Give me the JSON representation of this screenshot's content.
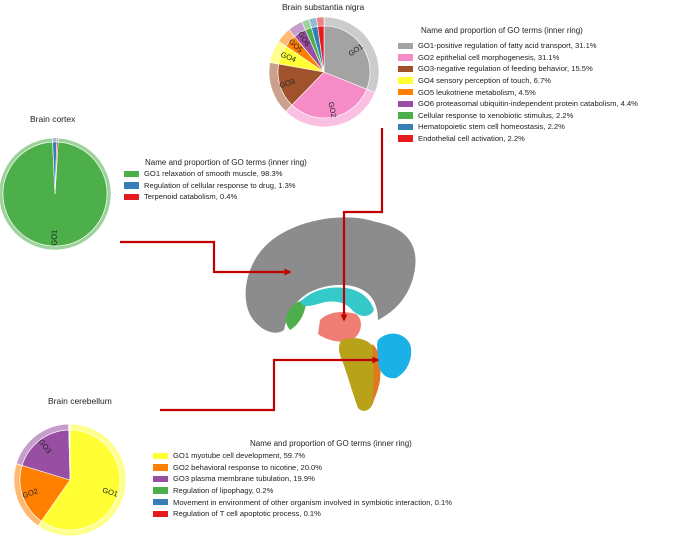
{
  "sections": {
    "substantia_nigra": {
      "title": "Brain substantia nigra",
      "legend_title": "Name and proportion of GO terms (inner ring)",
      "terms": [
        {
          "label": "GO1-positive regulation of fatty acid transport, 31.1%",
          "slice": "GO1",
          "value": 31.1,
          "color": "#a3a3a3"
        },
        {
          "label": "GO2 epithelial cell morphogenesis, 31.1%",
          "slice": "GO2",
          "value": 31.1,
          "color": "#f58cc8"
        },
        {
          "label": "GO3-negative regulation of feeding behavior, 15.5%",
          "slice": "GO3",
          "value": 15.5,
          "color": "#a0522d"
        },
        {
          "label": "GO4 sensory perception of touch, 6.7%",
          "slice": "GO4",
          "value": 6.7,
          "color": "#ffff33"
        },
        {
          "label": "GO5 leukotriene metabolism, 4.5%",
          "slice": "GO5",
          "value": 4.5,
          "color": "#ff7f00"
        },
        {
          "label": "GO6 proteasomal ubiquitin-independent protein catabolism, 4.4%",
          "slice": "GO6",
          "value": 4.4,
          "color": "#984ea3"
        },
        {
          "label": "Cellular response to xenobiotic stimulus, 2.2%",
          "slice": "",
          "value": 2.2,
          "color": "#4daf4a"
        },
        {
          "label": "Hematopoietic stem cell homeostasis, 2.2%",
          "slice": "",
          "value": 2.2,
          "color": "#377eb8"
        },
        {
          "label": "Endothelial cell activation, 2.2%",
          "slice": "",
          "value": 2.2,
          "color": "#e41a1c"
        }
      ]
    },
    "cortex": {
      "title": "Brain cortex",
      "legend_title": "Name and proportion of GO terms (inner ring)",
      "terms": [
        {
          "label": "GO1 relaxation of smooth muscle, 98.3%",
          "slice": "GO1",
          "value": 98.3,
          "color": "#4daf4a"
        },
        {
          "label": "Regulation of cellular response to drug, 1.3%",
          "slice": "",
          "value": 1.3,
          "color": "#377eb8"
        },
        {
          "label": "Terpenoid catabolism, 0.4%",
          "slice": "",
          "value": 0.4,
          "color": "#e41a1c"
        }
      ]
    },
    "cerebellum": {
      "title": "Brain cerebellum",
      "legend_title": "Name and proportion of GO terms (inner ring)",
      "terms": [
        {
          "label": "GO1 myotube cell development, 59.7%",
          "slice": "GO1",
          "value": 59.7,
          "color": "#ffff33"
        },
        {
          "label": "GO2 behavioral response to nicotine, 20.0%",
          "slice": "GO2",
          "value": 20.0,
          "color": "#ff7f00"
        },
        {
          "label": "GO3 plasma membrane tubulation, 19.9%",
          "slice": "GO3",
          "value": 19.9,
          "color": "#984ea3"
        },
        {
          "label": "Regulation of lipophagy, 0.2%",
          "slice": "",
          "value": 0.2,
          "color": "#4daf4a"
        },
        {
          "label": "Movement in environment of other organism involved in symbiotic interaction, 0.1%",
          "slice": "",
          "value": 0.1,
          "color": "#377eb8"
        },
        {
          "label": "Regulation of T cell apoptotic process, 0.1%",
          "slice": "",
          "value": 0.1,
          "color": "#e41a1c"
        }
      ]
    }
  },
  "brain_colors": {
    "cortex": "#8c8c8c",
    "cingulate": "#4daf4a",
    "callosum": "#35c9c9",
    "thalamus_blue": "#2aa7e0",
    "hypothalamus": "#f07d74",
    "brainstem": "#b8a21a",
    "cerebellum": "#1ab2e6",
    "arrow": "#c00000"
  }
}
